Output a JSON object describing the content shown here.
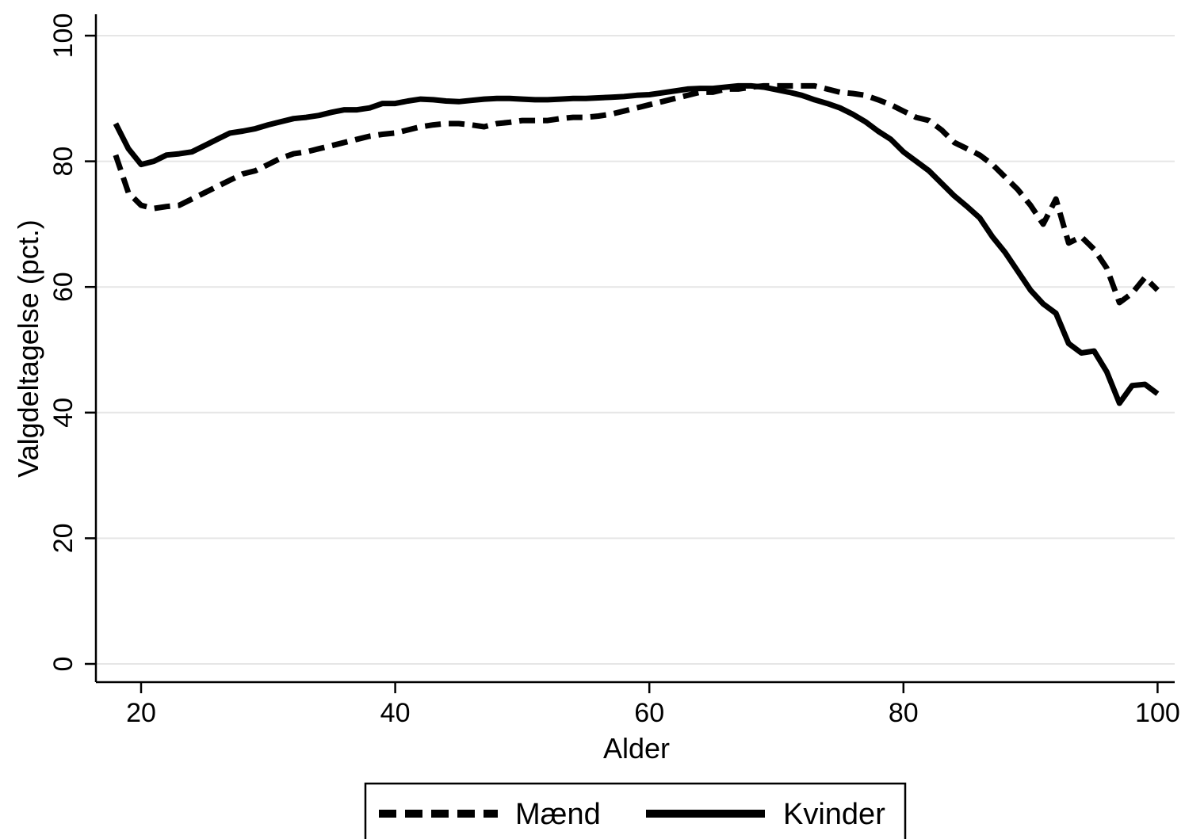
{
  "chart_data": {
    "type": "line",
    "xlabel": "Alder",
    "ylabel": "Valgdeltagelse (pct.)",
    "xlim": [
      18,
      100
    ],
    "ylim": [
      0,
      100
    ],
    "xticks": [
      "20",
      "40",
      "60",
      "80",
      "100"
    ],
    "yticks": [
      "0",
      "20",
      "40",
      "60",
      "80",
      "100"
    ],
    "grid": "horizontal",
    "legend": "bottom",
    "series": [
      {
        "name": "Mænd",
        "style": "dashed",
        "color": "#000000",
        "points": [
          [
            18,
            81
          ],
          [
            19,
            75
          ],
          [
            20,
            73
          ],
          [
            21,
            72.5
          ],
          [
            22,
            72.8
          ],
          [
            23,
            73
          ],
          [
            24,
            74
          ],
          [
            25,
            75
          ],
          [
            26,
            76
          ],
          [
            27,
            77
          ],
          [
            28,
            78
          ],
          [
            29,
            78.5
          ],
          [
            30,
            79.5
          ],
          [
            31,
            80.5
          ],
          [
            32,
            81.2
          ],
          [
            33,
            81.5
          ],
          [
            34,
            82
          ],
          [
            35,
            82.5
          ],
          [
            36,
            83
          ],
          [
            37,
            83.5
          ],
          [
            38,
            84
          ],
          [
            39,
            84.3
          ],
          [
            40,
            84.5
          ],
          [
            41,
            85
          ],
          [
            42,
            85.5
          ],
          [
            43,
            85.8
          ],
          [
            44,
            86
          ],
          [
            45,
            86
          ],
          [
            46,
            85.8
          ],
          [
            47,
            85.5
          ],
          [
            48,
            86
          ],
          [
            49,
            86.2
          ],
          [
            50,
            86.5
          ],
          [
            51,
            86.5
          ],
          [
            52,
            86.5
          ],
          [
            53,
            86.8
          ],
          [
            54,
            87
          ],
          [
            55,
            87
          ],
          [
            56,
            87.2
          ],
          [
            57,
            87.5
          ],
          [
            58,
            88
          ],
          [
            59,
            88.5
          ],
          [
            60,
            89
          ],
          [
            61,
            89.5
          ],
          [
            62,
            90
          ],
          [
            63,
            90.5
          ],
          [
            64,
            91
          ],
          [
            65,
            91
          ],
          [
            66,
            91.5
          ],
          [
            67,
            91.5
          ],
          [
            68,
            91.8
          ],
          [
            69,
            92
          ],
          [
            70,
            92
          ],
          [
            71,
            92
          ],
          [
            72,
            92
          ],
          [
            73,
            92
          ],
          [
            74,
            91.5
          ],
          [
            75,
            91
          ],
          [
            76,
            90.8
          ],
          [
            77,
            90.5
          ],
          [
            78,
            89.8
          ],
          [
            79,
            89
          ],
          [
            80,
            88
          ],
          [
            81,
            87
          ],
          [
            82,
            86.5
          ],
          [
            83,
            85
          ],
          [
            84,
            83
          ],
          [
            85,
            82
          ],
          [
            86,
            81
          ],
          [
            87,
            79.5
          ],
          [
            88,
            77.5
          ],
          [
            89,
            75.5
          ],
          [
            90,
            73
          ],
          [
            91,
            70
          ],
          [
            92,
            74
          ],
          [
            93,
            67
          ],
          [
            94,
            68
          ],
          [
            95,
            66
          ],
          [
            96,
            63
          ],
          [
            97,
            57.5
          ],
          [
            98,
            59
          ],
          [
            99,
            61.5
          ],
          [
            100,
            59.5
          ]
        ]
      },
      {
        "name": "Kvinder",
        "style": "solid",
        "color": "#000000",
        "points": [
          [
            18,
            86
          ],
          [
            19,
            82
          ],
          [
            20,
            79.5
          ],
          [
            21,
            80
          ],
          [
            22,
            81
          ],
          [
            23,
            81.2
          ],
          [
            24,
            81.5
          ],
          [
            25,
            82.5
          ],
          [
            26,
            83.5
          ],
          [
            27,
            84.5
          ],
          [
            28,
            84.8
          ],
          [
            29,
            85.2
          ],
          [
            30,
            85.8
          ],
          [
            31,
            86.3
          ],
          [
            32,
            86.8
          ],
          [
            33,
            87
          ],
          [
            34,
            87.3
          ],
          [
            35,
            87.8
          ],
          [
            36,
            88.2
          ],
          [
            37,
            88.2
          ],
          [
            38,
            88.5
          ],
          [
            39,
            89.2
          ],
          [
            40,
            89.2
          ],
          [
            41,
            89.6
          ],
          [
            42,
            89.9
          ],
          [
            43,
            89.8
          ],
          [
            44,
            89.6
          ],
          [
            45,
            89.5
          ],
          [
            46,
            89.7
          ],
          [
            47,
            89.9
          ],
          [
            48,
            90
          ],
          [
            49,
            90
          ],
          [
            50,
            89.9
          ],
          [
            51,
            89.8
          ],
          [
            52,
            89.8
          ],
          [
            53,
            89.9
          ],
          [
            54,
            90
          ],
          [
            55,
            90
          ],
          [
            56,
            90.1
          ],
          [
            57,
            90.2
          ],
          [
            58,
            90.3
          ],
          [
            59,
            90.5
          ],
          [
            60,
            90.6
          ],
          [
            61,
            90.9
          ],
          [
            62,
            91.2
          ],
          [
            63,
            91.5
          ],
          [
            64,
            91.6
          ],
          [
            65,
            91.6
          ],
          [
            66,
            91.8
          ],
          [
            67,
            92
          ],
          [
            68,
            92
          ],
          [
            69,
            91.8
          ],
          [
            70,
            91.4
          ],
          [
            71,
            91
          ],
          [
            72,
            90.5
          ],
          [
            73,
            89.8
          ],
          [
            74,
            89.2
          ],
          [
            75,
            88.5
          ],
          [
            76,
            87.5
          ],
          [
            77,
            86.3
          ],
          [
            78,
            84.8
          ],
          [
            79,
            83.5
          ],
          [
            80,
            81.5
          ],
          [
            81,
            80
          ],
          [
            82,
            78.5
          ],
          [
            83,
            76.5
          ],
          [
            84,
            74.5
          ],
          [
            85,
            72.8
          ],
          [
            86,
            71
          ],
          [
            87,
            68
          ],
          [
            88,
            65.5
          ],
          [
            89,
            62.5
          ],
          [
            90,
            59.5
          ],
          [
            91,
            57.3
          ],
          [
            92,
            55.8
          ],
          [
            93,
            51
          ],
          [
            94,
            49.5
          ],
          [
            95,
            49.8
          ],
          [
            96,
            46.5
          ],
          [
            97,
            41.5
          ],
          [
            98,
            44.3
          ],
          [
            99,
            44.5
          ],
          [
            100,
            43
          ]
        ]
      }
    ]
  }
}
